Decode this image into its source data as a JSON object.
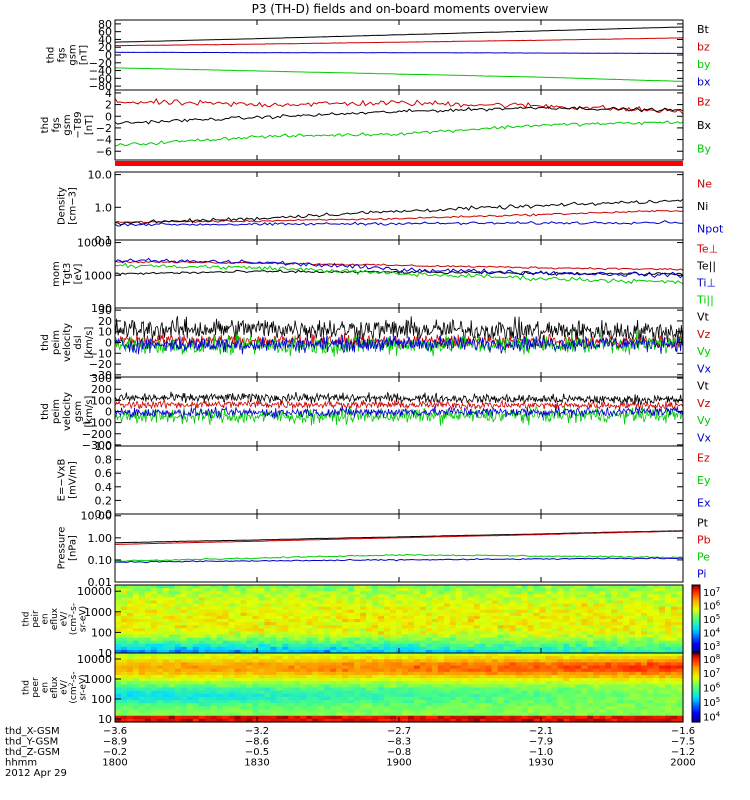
{
  "chart_data": {
    "type": "line",
    "title": "P3 (TH-D) fields and on-board moments overview",
    "x_ticks": [
      "1800",
      "1830",
      "1900",
      "1930",
      "2000"
    ],
    "panels": [
      {
        "id": "fgs",
        "ylabel": [
          "thd",
          "fgs",
          "gsm",
          "[nT]"
        ],
        "ylim": [
          -90,
          90
        ],
        "scale": "linear",
        "yticks": [
          "80",
          "60",
          "40",
          "20",
          "0",
          "−20",
          "−40",
          "−60",
          "−80"
        ],
        "ytick_values": [
          80,
          60,
          40,
          20,
          0,
          -20,
          -40,
          -60,
          -80
        ],
        "series": [
          {
            "name": "Bt",
            "color": "#000000",
            "values": [
              33,
              42,
              52,
              62,
              72
            ],
            "noise": 0.2
          },
          {
            "name": "bz",
            "color": "#cc0000",
            "values": [
              24,
              28,
              33,
              38,
              44
            ],
            "noise": 0.2
          },
          {
            "name": "by",
            "color": "#00cc00",
            "values": [
              -33,
              -41,
              -49,
              -57,
              -68
            ],
            "noise": 0.2
          },
          {
            "name": "bx",
            "color": "#0000cc",
            "values": [
              7,
              6,
              6,
              5,
              4
            ],
            "noise": 0.2
          }
        ]
      },
      {
        "id": "fgs_dt89",
        "ylabel": [
          "thd",
          "fgs",
          "gsm",
          "−T89",
          "[nT]"
        ],
        "ylim": [
          -7.5,
          4.5
        ],
        "scale": "linear",
        "yticks": [
          "4",
          "2",
          "0",
          "−2",
          "−4",
          "−6"
        ],
        "ytick_values": [
          4,
          2,
          0,
          -2,
          -4,
          -6
        ],
        "series": [
          {
            "name": "Bz",
            "color": "#cc0000",
            "values": [
              2.5,
              2.0,
              2.3,
              1.8,
              0.8
            ],
            "noise": 0.35
          },
          {
            "name": "Bx",
            "color": "#000000",
            "values": [
              -1.2,
              -0.2,
              0.8,
              1.5,
              1.0
            ],
            "noise": 0.2
          },
          {
            "name": "By",
            "color": "#00cc00",
            "values": [
              -5.0,
              -3.5,
              -3.0,
              -1.5,
              -1.0
            ],
            "noise": 0.2
          }
        ]
      },
      {
        "id": "density",
        "ylabel": [
          "Density",
          "[cm−3]"
        ],
        "ylim": [
          0.1,
          12
        ],
        "scale": "log",
        "yticks": [
          "10.0",
          "1.0",
          "0.1"
        ],
        "ytick_values": [
          10,
          1,
          0.1
        ],
        "series": [
          {
            "name": "Ne",
            "color": "#cc0000",
            "values": [
              0.35,
              0.38,
              0.45,
              0.6,
              0.8
            ],
            "noise": 0.02
          },
          {
            "name": "Ni",
            "color": "#000000",
            "values": [
              0.32,
              0.45,
              0.75,
              1.1,
              1.6
            ],
            "noise": 0.04
          },
          {
            "name": "Npot",
            "color": "#0000cc",
            "values": [
              0.3,
              0.3,
              0.32,
              0.33,
              0.35
            ],
            "noise": 0.03
          }
        ]
      },
      {
        "id": "temperature",
        "ylabel": [
          "mom",
          "Tgt3",
          "[eV]"
        ],
        "ylim": [
          100,
          12000
        ],
        "scale": "log",
        "yticks": [
          "10000",
          "1000",
          "100"
        ],
        "ytick_values": [
          10000,
          1000,
          100
        ],
        "series": [
          {
            "name": "Te⊥",
            "color": "#cc0000",
            "values": [
              2600,
              2400,
              2000,
              1700,
              1500
            ],
            "noise": 0.02
          },
          {
            "name": "Te||",
            "color": "#000000",
            "values": [
              1100,
              1300,
              1250,
              1150,
              1100
            ],
            "noise": 0.03
          },
          {
            "name": "Ti⊥",
            "color": "#0000cc",
            "values": [
              2800,
              2500,
              1500,
              1200,
              1000
            ],
            "noise": 0.05
          },
          {
            "name": "Ti||",
            "color": "#00cc00",
            "values": [
              2000,
              1700,
              1100,
              800,
              600
            ],
            "noise": 0.05
          }
        ]
      },
      {
        "id": "velocity_dsl",
        "ylabel": [
          "thd",
          "peim",
          "velocity",
          "dsl",
          "[km/s]"
        ],
        "ylim": [
          -32,
          32
        ],
        "scale": "linear",
        "yticks": [
          "30",
          "20",
          "10",
          "0",
          "−10",
          "−20",
          "−30"
        ],
        "ytick_values": [
          30,
          20,
          10,
          0,
          -10,
          -20,
          -30
        ],
        "series": [
          {
            "name": "Vt",
            "color": "#000000",
            "values": [
              12,
              13,
              12,
              11,
              10
            ],
            "noise": 7
          },
          {
            "name": "Vz",
            "color": "#cc0000",
            "values": [
              2,
              2,
              1,
              1,
              1
            ],
            "noise": 4
          },
          {
            "name": "Vy",
            "color": "#00cc00",
            "values": [
              -3,
              -3,
              -2,
              -2,
              -1
            ],
            "noise": 6
          },
          {
            "name": "Vx",
            "color": "#0000cc",
            "values": [
              -2,
              -2,
              -1,
              -1,
              -1
            ],
            "noise": 5
          }
        ]
      },
      {
        "id": "velocity_gsm",
        "ylabel": [
          "thd",
          "peim",
          "velocity",
          "gsm",
          "[km/s]"
        ],
        "ylim": [
          -310,
          310
        ],
        "scale": "linear",
        "yticks": [
          "300",
          "200",
          "100",
          "0",
          "−100",
          "−200",
          "−300"
        ],
        "ytick_values": [
          300,
          200,
          100,
          0,
          -100,
          -200,
          -300
        ],
        "series": [
          {
            "name": "Vt",
            "color": "#000000",
            "values": [
              120,
              125,
              120,
              110,
              105
            ],
            "noise": 30
          },
          {
            "name": "Vz",
            "color": "#cc0000",
            "values": [
              60,
              65,
              60,
              55,
              55
            ],
            "noise": 25
          },
          {
            "name": "Vy",
            "color": "#00cc00",
            "values": [
              -40,
              -45,
              -40,
              -35,
              -30
            ],
            "noise": 45
          },
          {
            "name": "Vx",
            "color": "#0000cc",
            "values": [
              -10,
              -10,
              -5,
              -5,
              0
            ],
            "noise": 30
          }
        ]
      },
      {
        "id": "efield",
        "ylabel": [
          "E=−VxB",
          "[mV/m]"
        ],
        "ylim": [
          0,
          1
        ],
        "scale": "linear",
        "yticks": [
          "1.0",
          "0.8",
          "0.6",
          "0.4",
          "0.2",
          "0.0"
        ],
        "ytick_values": [
          1,
          0.8,
          0.6,
          0.4,
          0.2,
          0
        ],
        "series": [
          {
            "name": "Ez",
            "color": "#cc0000",
            "values": [],
            "noise": 0
          },
          {
            "name": "Ey",
            "color": "#00cc00",
            "values": [],
            "noise": 0
          },
          {
            "name": "Ex",
            "color": "#0000cc",
            "values": [],
            "noise": 0
          }
        ]
      },
      {
        "id": "pressure",
        "ylabel": [
          "Pressure",
          "[nPa]"
        ],
        "ylim": [
          0.01,
          12
        ],
        "scale": "log",
        "yticks": [
          "10.00",
          "1.00",
          "0.10",
          "0.01"
        ],
        "ytick_values": [
          10,
          1,
          0.1,
          0.01
        ],
        "series": [
          {
            "name": "Pt",
            "color": "#000000",
            "values": [
              0.6,
              0.8,
              1.1,
              1.5,
              2.1
            ],
            "noise": 0.005
          },
          {
            "name": "Pb",
            "color": "#cc0000",
            "values": [
              0.5,
              0.7,
              1.0,
              1.4,
              2.0
            ],
            "noise": 0.005
          },
          {
            "name": "Pe",
            "color": "#00cc00",
            "values": [
              0.09,
              0.12,
              0.17,
              0.15,
              0.13
            ],
            "noise": 0.02
          },
          {
            "name": "Pi",
            "color": "#0000cc",
            "values": [
              0.08,
              0.09,
              0.1,
              0.11,
              0.12
            ],
            "noise": 0.02
          }
        ]
      }
    ],
    "spectrograms": [
      {
        "id": "peir",
        "ylabel": [
          "thd",
          "peir",
          "en",
          "eflux",
          "eV/",
          "(cm^2-s-",
          "sr-eV)"
        ],
        "ylim": [
          10,
          20000
        ],
        "yticks": [
          "10000",
          "1000",
          "100",
          "10"
        ],
        "ytick_values": [
          10000,
          1000,
          100,
          10
        ],
        "colorbar_ticks": [
          "10^7",
          "10^6",
          "10^5",
          "10^4",
          "10^3"
        ],
        "colorbar_range": [
          2.5,
          7.5
        ]
      },
      {
        "id": "peer",
        "ylabel": [
          "thd",
          "peer",
          "en",
          "eflux",
          "eV/",
          "(cm^2-s-",
          "sr-eV)"
        ],
        "ylim": [
          7,
          20000
        ],
        "yticks": [
          "10000",
          "1000",
          "100",
          "10"
        ],
        "ytick_values": [
          10000,
          1000,
          100,
          10
        ],
        "colorbar_ticks": [
          "10^8",
          "10^7",
          "10^6",
          "10^5",
          "10^4"
        ],
        "colorbar_range": [
          3.6,
          8.4
        ]
      }
    ],
    "ephemeris": [
      {
        "label": "thd_X-GSM",
        "values": [
          "−3.6",
          "−3.2",
          "−2.7",
          "−2.1",
          "−1.6"
        ]
      },
      {
        "label": "thd_Y-GSM",
        "values": [
          "−8.9",
          "−8.6",
          "−8.3",
          "−7.9",
          "−7.5"
        ]
      },
      {
        "label": "thd_Z-GSM",
        "values": [
          "−0.2",
          "−0.5",
          "−0.8",
          "−1.0",
          "−1.2"
        ]
      },
      {
        "label": "hhmm",
        "values": [
          "1800",
          "1830",
          "1900",
          "1930",
          "2000"
        ]
      }
    ],
    "date": "2012 Apr 29"
  }
}
